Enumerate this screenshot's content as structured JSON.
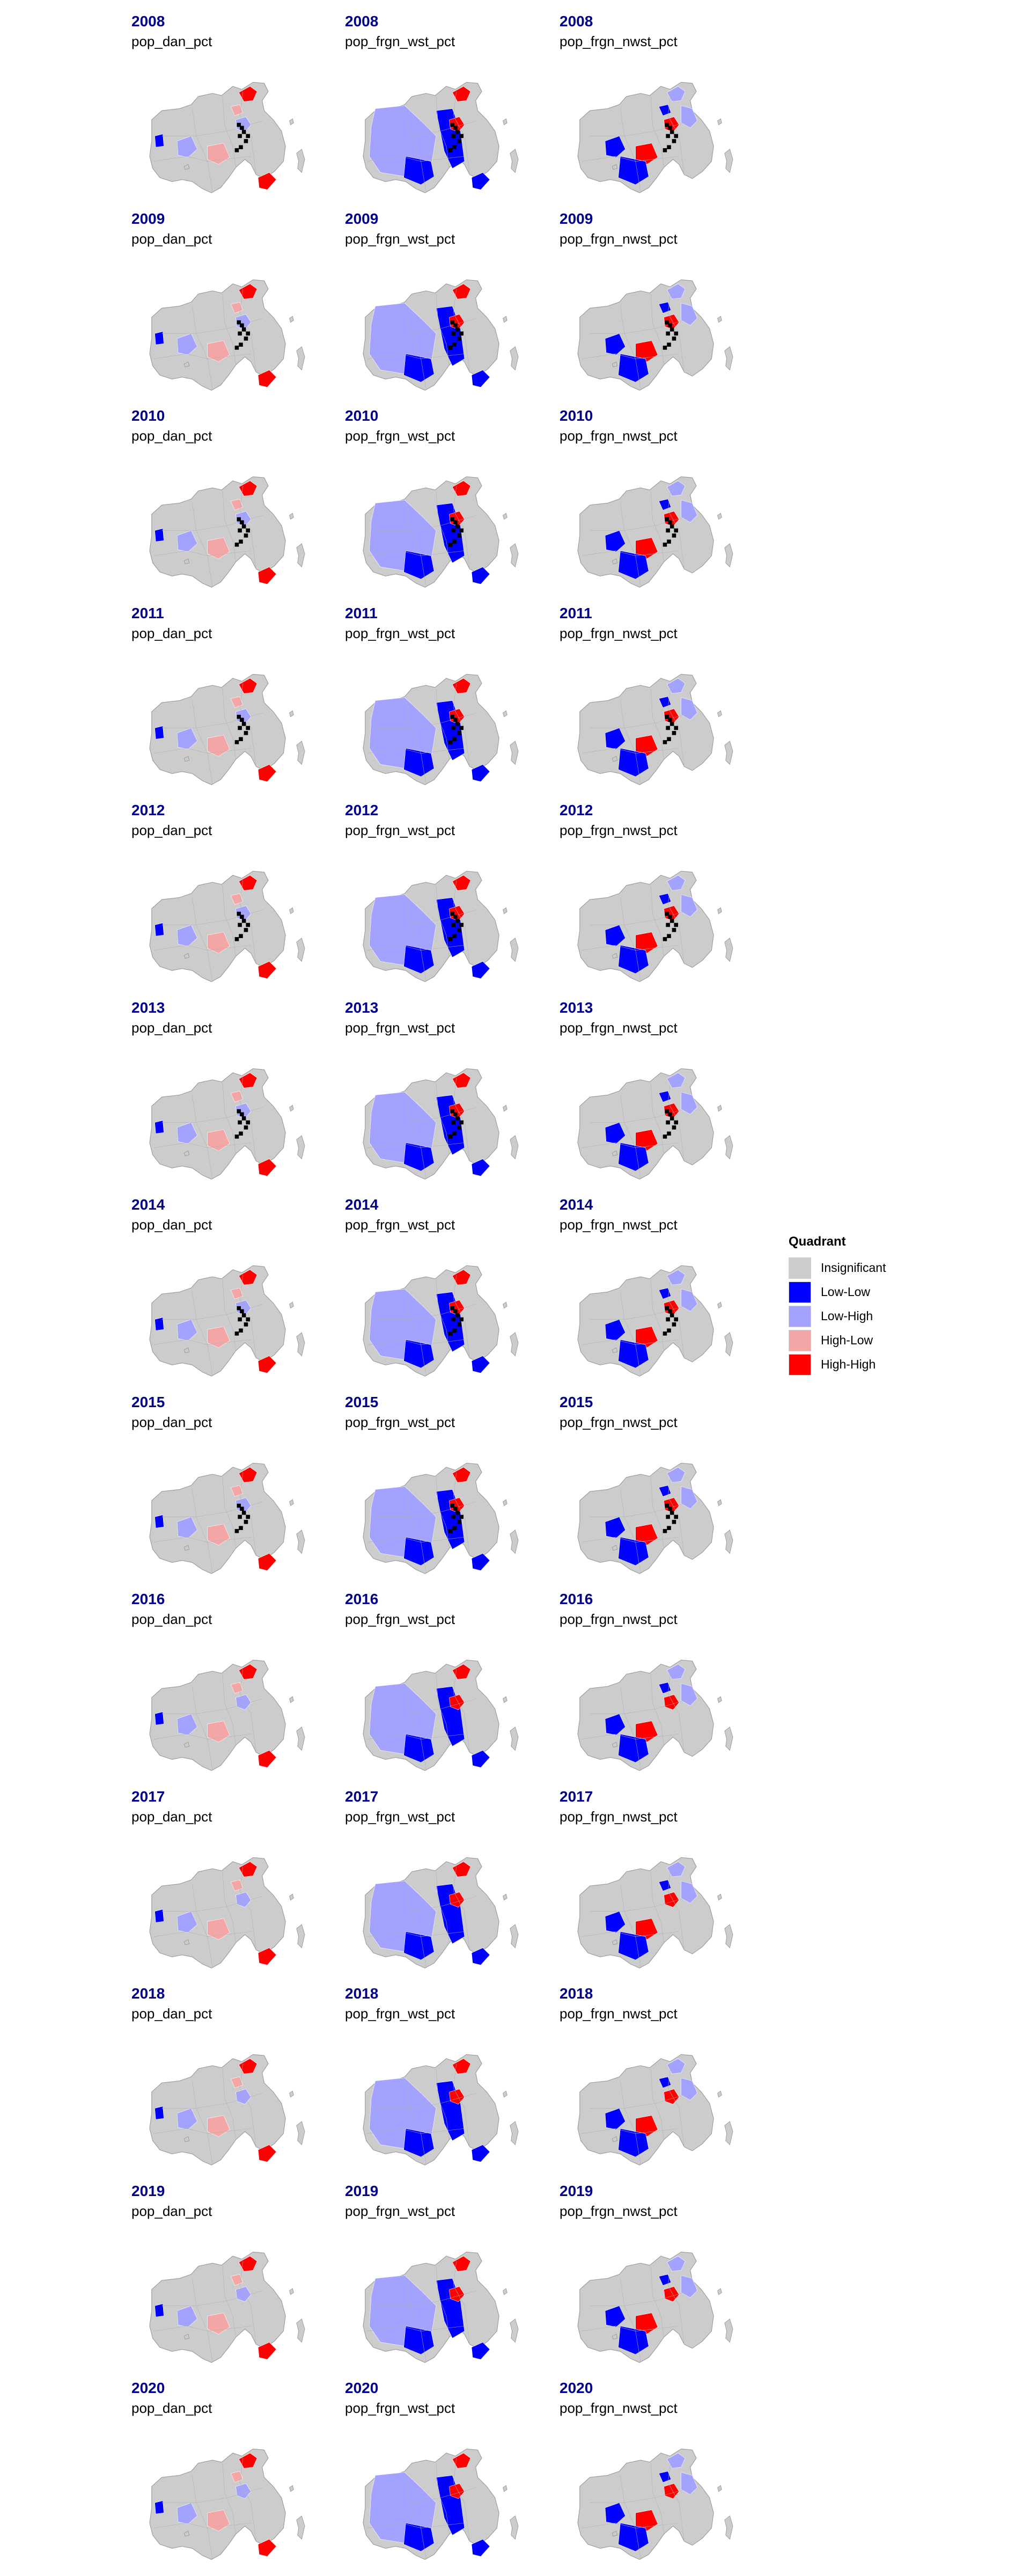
{
  "legend": {
    "title": "Quadrant",
    "items": [
      {
        "label": "Insignificant",
        "color": "#cccccc"
      },
      {
        "label": "Low-Low",
        "color": "#0000ff"
      },
      {
        "label": "Low-High",
        "color": "#a3a3ff"
      },
      {
        "label": "High-Low",
        "color": "#f4a6a6"
      },
      {
        "label": "High-High",
        "color": "#ff0000"
      }
    ]
  },
  "colors": {
    "insignificant": "#cccccc",
    "low_low": "#0000ff",
    "low_high": "#a3a3ff",
    "high_low": "#f4a6a6",
    "high_high": "#ff0000",
    "no_data": "#000000",
    "year_title": "#00008b"
  },
  "variables": [
    "pop_dan_pct",
    "pop_frgn_wst_pct",
    "pop_frgn_nwst_pct"
  ],
  "panels": [
    {
      "year": "2008",
      "variable": "pop_dan_pct"
    },
    {
      "year": "2008",
      "variable": "pop_frgn_wst_pct"
    },
    {
      "year": "2008",
      "variable": "pop_frgn_nwst_pct"
    },
    {
      "year": "2009",
      "variable": "pop_dan_pct"
    },
    {
      "year": "2009",
      "variable": "pop_frgn_wst_pct"
    },
    {
      "year": "2009",
      "variable": "pop_frgn_nwst_pct"
    },
    {
      "year": "2010",
      "variable": "pop_dan_pct"
    },
    {
      "year": "2010",
      "variable": "pop_frgn_wst_pct"
    },
    {
      "year": "2010",
      "variable": "pop_frgn_nwst_pct"
    },
    {
      "year": "2011",
      "variable": "pop_dan_pct"
    },
    {
      "year": "2011",
      "variable": "pop_frgn_wst_pct"
    },
    {
      "year": "2011",
      "variable": "pop_frgn_nwst_pct"
    },
    {
      "year": "2012",
      "variable": "pop_dan_pct"
    },
    {
      "year": "2012",
      "variable": "pop_frgn_wst_pct"
    },
    {
      "year": "2012",
      "variable": "pop_frgn_nwst_pct"
    },
    {
      "year": "2013",
      "variable": "pop_dan_pct"
    },
    {
      "year": "2013",
      "variable": "pop_frgn_wst_pct"
    },
    {
      "year": "2013",
      "variable": "pop_frgn_nwst_pct"
    },
    {
      "year": "2014",
      "variable": "pop_dan_pct"
    },
    {
      "year": "2014",
      "variable": "pop_frgn_wst_pct"
    },
    {
      "year": "2014",
      "variable": "pop_frgn_nwst_pct"
    },
    {
      "year": "2015",
      "variable": "pop_dan_pct"
    },
    {
      "year": "2015",
      "variable": "pop_frgn_wst_pct"
    },
    {
      "year": "2015",
      "variable": "pop_frgn_nwst_pct"
    },
    {
      "year": "2016",
      "variable": "pop_dan_pct"
    },
    {
      "year": "2016",
      "variable": "pop_frgn_wst_pct"
    },
    {
      "year": "2016",
      "variable": "pop_frgn_nwst_pct"
    },
    {
      "year": "2017",
      "variable": "pop_dan_pct"
    },
    {
      "year": "2017",
      "variable": "pop_frgn_wst_pct"
    },
    {
      "year": "2017",
      "variable": "pop_frgn_nwst_pct"
    },
    {
      "year": "2018",
      "variable": "pop_dan_pct"
    },
    {
      "year": "2018",
      "variable": "pop_frgn_wst_pct"
    },
    {
      "year": "2018",
      "variable": "pop_frgn_nwst_pct"
    },
    {
      "year": "2019",
      "variable": "pop_dan_pct"
    },
    {
      "year": "2019",
      "variable": "pop_frgn_wst_pct"
    },
    {
      "year": "2019",
      "variable": "pop_frgn_nwst_pct"
    },
    {
      "year": "2020",
      "variable": "pop_dan_pct"
    },
    {
      "year": "2020",
      "variable": "pop_frgn_wst_pct"
    },
    {
      "year": "2020",
      "variable": "pop_frgn_nwst_pct"
    }
  ]
}
